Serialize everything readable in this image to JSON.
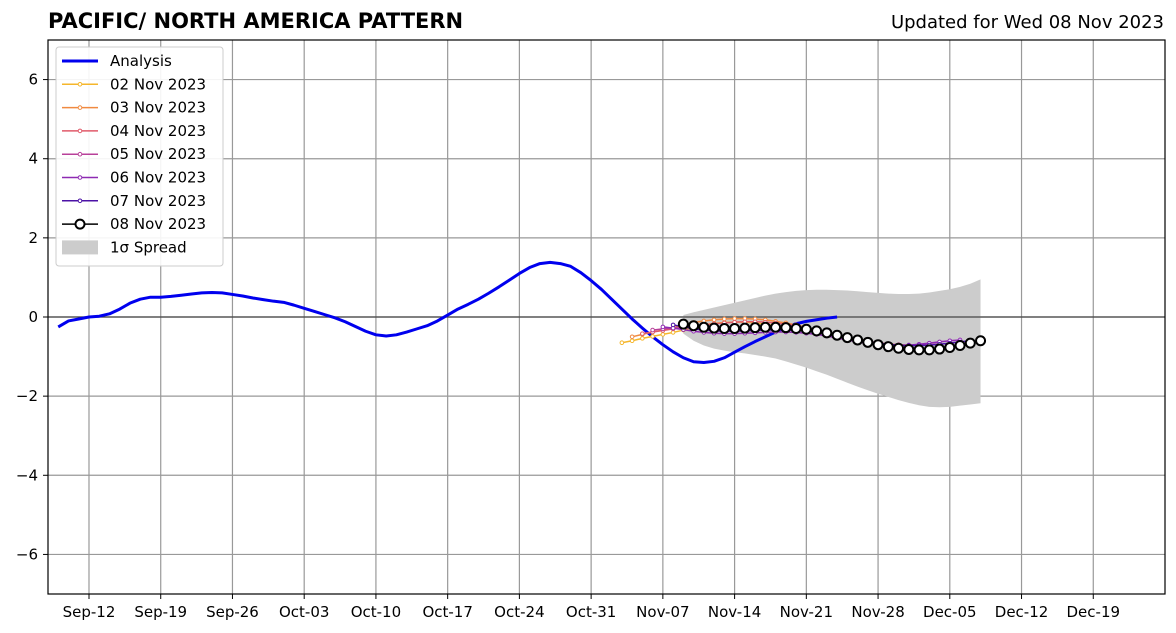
{
  "chart_data": {
    "type": "line",
    "title": "PACIFIC/ NORTH AMERICA PATTERN",
    "subtitle": "Updated for Wed 08 Nov 2023",
    "xlabel": "",
    "ylabel": "",
    "xlim": [
      "2023-09-08",
      "2023-12-26"
    ],
    "ylim": [
      -7,
      7
    ],
    "grid": true,
    "legend_position": "top-left",
    "x_ticks": [
      {
        "date": "2023-09-12",
        "label": "Sep-12"
      },
      {
        "date": "2023-09-19",
        "label": "Sep-19"
      },
      {
        "date": "2023-09-26",
        "label": "Sep-26"
      },
      {
        "date": "2023-10-03",
        "label": "Oct-03"
      },
      {
        "date": "2023-10-10",
        "label": "Oct-10"
      },
      {
        "date": "2023-10-17",
        "label": "Oct-17"
      },
      {
        "date": "2023-10-24",
        "label": "Oct-24"
      },
      {
        "date": "2023-10-31",
        "label": "Oct-31"
      },
      {
        "date": "2023-11-07",
        "label": "Nov-07"
      },
      {
        "date": "2023-11-14",
        "label": "Nov-14"
      },
      {
        "date": "2023-11-21",
        "label": "Nov-21"
      },
      {
        "date": "2023-11-28",
        "label": "Nov-28"
      },
      {
        "date": "2023-12-05",
        "label": "Dec-05"
      },
      {
        "date": "2023-12-12",
        "label": "Dec-12"
      },
      {
        "date": "2023-12-19",
        "label": "Dec-19"
      }
    ],
    "y_ticks": [
      {
        "value": -6,
        "label": "−6"
      },
      {
        "value": -4,
        "label": "−4"
      },
      {
        "value": -2,
        "label": "−2"
      },
      {
        "value": 0,
        "label": "0"
      },
      {
        "value": 2,
        "label": "2"
      },
      {
        "value": 4,
        "label": "4"
      },
      {
        "value": 6,
        "label": "6"
      }
    ],
    "analysis": {
      "name": "Analysis",
      "color": "#0000ee",
      "start": "2023-09-09",
      "step_days": 1,
      "values": [
        -0.25,
        -0.1,
        -0.05,
        0.0,
        0.02,
        0.08,
        0.2,
        0.35,
        0.45,
        0.5,
        0.5,
        0.52,
        0.55,
        0.58,
        0.61,
        0.62,
        0.61,
        0.57,
        0.53,
        0.48,
        0.44,
        0.4,
        0.37,
        0.3,
        0.22,
        0.14,
        0.06,
        -0.02,
        -0.12,
        -0.24,
        -0.36,
        -0.45,
        -0.48,
        -0.45,
        -0.38,
        -0.3,
        -0.22,
        -0.1,
        0.05,
        0.2,
        0.32,
        0.45,
        0.6,
        0.76,
        0.93,
        1.1,
        1.25,
        1.35,
        1.38,
        1.35,
        1.28,
        1.12,
        0.92,
        0.7,
        0.45,
        0.2,
        -0.05,
        -0.28,
        -0.5,
        -0.7,
        -0.88,
        -1.03,
        -1.13,
        -1.15,
        -1.12,
        -1.03,
        -0.89,
        -0.75,
        -0.62,
        -0.5,
        -0.38,
        -0.26,
        -0.17,
        -0.11,
        -0.07,
        -0.03,
        0.0
      ]
    },
    "forecasts": [
      {
        "name": "02 Nov 2023",
        "color": "#f5b62b",
        "start": "2023-11-03",
        "step_days": 1,
        "values": [
          -0.65,
          -0.6,
          -0.54,
          -0.49,
          -0.44,
          -0.39,
          -0.33,
          -0.26,
          -0.2,
          -0.16,
          -0.14,
          -0.13,
          -0.13,
          -0.15,
          -0.18,
          -0.22
        ]
      },
      {
        "name": "03 Nov 2023",
        "color": "#f08a40",
        "start": "2023-11-04",
        "step_days": 1,
        "values": [
          -0.5,
          -0.44,
          -0.38,
          -0.33,
          -0.27,
          -0.2,
          -0.14,
          -0.1,
          -0.07,
          -0.05,
          -0.04,
          -0.04,
          -0.05,
          -0.07,
          -0.11,
          -0.15,
          -0.2,
          -0.26,
          -0.33,
          -0.39,
          -0.45,
          -0.51,
          -0.56,
          -0.6
        ]
      },
      {
        "name": "04 Nov 2023",
        "color": "#e05a6a",
        "start": "2023-11-05",
        "step_days": 1,
        "values": [
          -0.42,
          -0.38,
          -0.34,
          -0.3,
          -0.26,
          -0.23,
          -0.2,
          -0.17,
          -0.15,
          -0.13,
          -0.12,
          -0.12,
          -0.13,
          -0.15,
          -0.18,
          -0.22,
          -0.27,
          -0.33,
          -0.39,
          -0.45,
          -0.51,
          -0.56,
          -0.61,
          -0.65,
          -0.68,
          -0.7,
          -0.71
        ]
      },
      {
        "name": "05 Nov 2023",
        "color": "#b8409a",
        "start": "2023-11-06",
        "step_days": 1,
        "values": [
          -0.33,
          -0.3,
          -0.28,
          -0.27,
          -0.27,
          -0.28,
          -0.29,
          -0.3,
          -0.3,
          -0.3,
          -0.29,
          -0.28,
          -0.28,
          -0.28,
          -0.3,
          -0.33,
          -0.37,
          -0.42,
          -0.48,
          -0.54,
          -0.59,
          -0.64,
          -0.68,
          -0.71,
          -0.72,
          -0.72,
          -0.71,
          -0.7,
          -0.68
        ]
      },
      {
        "name": "06 Nov 2023",
        "color": "#8e2ab2",
        "start": "2023-11-07",
        "step_days": 1,
        "values": [
          -0.25,
          -0.28,
          -0.32,
          -0.36,
          -0.39,
          -0.41,
          -0.42,
          -0.42,
          -0.41,
          -0.4,
          -0.39,
          -0.38,
          -0.38,
          -0.39,
          -0.41,
          -0.44,
          -0.48,
          -0.53,
          -0.58,
          -0.63,
          -0.67,
          -0.7,
          -0.72,
          -0.72,
          -0.71,
          -0.69,
          -0.66,
          -0.63,
          -0.6,
          -0.58
        ]
      },
      {
        "name": "07 Nov 2023",
        "color": "#4b12a6",
        "start": "2023-11-08",
        "step_days": 1,
        "values": [
          -0.2,
          -0.25,
          -0.3,
          -0.33,
          -0.35,
          -0.36,
          -0.36,
          -0.35,
          -0.34,
          -0.33,
          -0.33,
          -0.33,
          -0.34,
          -0.36,
          -0.39,
          -0.43,
          -0.48,
          -0.53,
          -0.58,
          -0.62,
          -0.66,
          -0.69,
          -0.71,
          -0.72,
          -0.72,
          -0.71,
          -0.69,
          -0.66,
          -0.63,
          -0.6
        ]
      }
    ],
    "current_forecast": {
      "name": "08 Nov 2023",
      "color": "#000000",
      "start": "2023-11-09",
      "step_days": 1,
      "values": [
        -0.18,
        -0.22,
        -0.26,
        -0.28,
        -0.29,
        -0.29,
        -0.28,
        -0.27,
        -0.26,
        -0.26,
        -0.27,
        -0.29,
        -0.31,
        -0.35,
        -0.4,
        -0.46,
        -0.52,
        -0.58,
        -0.64,
        -0.7,
        -0.75,
        -0.79,
        -0.82,
        -0.83,
        -0.83,
        -0.81,
        -0.77,
        -0.72,
        -0.66,
        -0.6
      ]
    },
    "spread": {
      "name": "1σ Spread",
      "color": "#cccccc",
      "start": "2023-11-09",
      "step_days": 1,
      "upper": [
        0.05,
        0.12,
        0.18,
        0.24,
        0.3,
        0.36,
        0.42,
        0.48,
        0.54,
        0.59,
        0.63,
        0.66,
        0.68,
        0.69,
        0.69,
        0.68,
        0.67,
        0.65,
        0.63,
        0.61,
        0.59,
        0.58,
        0.58,
        0.59,
        0.62,
        0.66,
        0.7,
        0.76,
        0.84,
        0.95
      ],
      "lower": [
        -0.42,
        -0.6,
        -0.72,
        -0.8,
        -0.85,
        -0.89,
        -0.92,
        -0.96,
        -1.0,
        -1.05,
        -1.12,
        -1.2,
        -1.28,
        -1.37,
        -1.46,
        -1.56,
        -1.66,
        -1.76,
        -1.85,
        -1.94,
        -2.02,
        -2.1,
        -2.17,
        -2.23,
        -2.27,
        -2.28,
        -2.27,
        -2.24,
        -2.21,
        -2.18
      ]
    }
  }
}
